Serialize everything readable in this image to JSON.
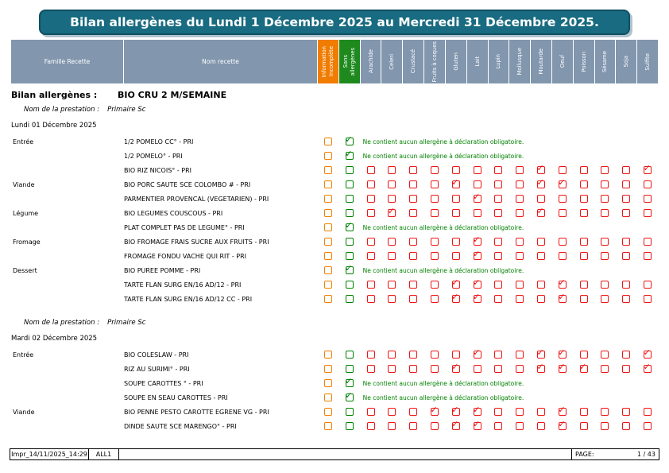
{
  "title": "Bilan allergènes du Lundi 1 Décembre 2025 au Mercredi 31 Décembre 2025.",
  "header": {
    "family": "Famille Recette",
    "recipe": "Nom recette",
    "special": [
      {
        "label": "Information Incomplète",
        "key": "info-incomplete"
      },
      {
        "label": "Sans allergènes",
        "key": "sans-allergenes"
      }
    ],
    "allergens": [
      "Arachide",
      "Celeri",
      "Crustacé",
      "Fruits à coques",
      "Gluten",
      "Lait",
      "Lupin",
      "Mollusque",
      "Moutarde",
      "Oeuf",
      "Poisson",
      "Sésame",
      "Soja",
      "Sulfite"
    ]
  },
  "bilan": {
    "label": "Bilan allergènes :",
    "value": "BIO CRU 2 M/SEMAINE"
  },
  "no_allergen_text": "Ne contient aucun allergène à déclaration obligatoire.",
  "days": [
    {
      "prestation_label": "Nom de la prestation :",
      "prestation_value": "Primaire Sc",
      "date": "Lundi 01 Décembre 2025",
      "rows": [
        {
          "family": "Entrée",
          "recipe": "1/2 POMELO CC° - PRI",
          "info_incomplete": false,
          "no_allergen": true,
          "allergens_checked": []
        },
        {
          "family": "",
          "recipe": "1/2 POMELO° - PRI",
          "info_incomplete": false,
          "no_allergen": true,
          "allergens_checked": []
        },
        {
          "family": "",
          "recipe": "BIO RIZ NICOIS° - PRI",
          "info_incomplete": false,
          "no_allergen": false,
          "allergens_checked": [
            "Moutarde",
            "Sulfite"
          ]
        },
        {
          "family": "Viande",
          "recipe": "BIO PORC SAUTE SCE COLOMBO # - PRI",
          "info_incomplete": false,
          "no_allergen": false,
          "allergens_checked": [
            "Gluten",
            "Moutarde",
            "Oeuf"
          ]
        },
        {
          "family": "",
          "recipe": "PARMENTIER PROVENCAL (VEGETARIEN) - PRI",
          "info_incomplete": false,
          "no_allergen": false,
          "allergens_checked": [
            "Lait"
          ]
        },
        {
          "family": "Légume",
          "recipe": "BIO LEGUMES COUSCOUS - PRI",
          "info_incomplete": false,
          "no_allergen": false,
          "allergens_checked": [
            "Celeri",
            "Moutarde"
          ]
        },
        {
          "family": "",
          "recipe": "PLAT COMPLET PAS DE LEGUME° - PRI",
          "info_incomplete": false,
          "no_allergen": true,
          "allergens_checked": []
        },
        {
          "family": "Fromage",
          "recipe": "BIO FROMAGE FRAIS SUCRE AUX FRUITS - PRI",
          "info_incomplete": false,
          "no_allergen": false,
          "allergens_checked": [
            "Lait"
          ]
        },
        {
          "family": "",
          "recipe": "FROMAGE FONDU VACHE QUI RIT - PRI",
          "info_incomplete": false,
          "no_allergen": false,
          "allergens_checked": [
            "Lait"
          ]
        },
        {
          "family": "Dessert",
          "recipe": "BIO PUREE POMME - PRI",
          "info_incomplete": false,
          "no_allergen": true,
          "allergens_checked": []
        },
        {
          "family": "",
          "recipe": "TARTE FLAN SURG EN/16 AD/12 - PRI",
          "info_incomplete": false,
          "no_allergen": false,
          "allergens_checked": [
            "Gluten",
            "Lait",
            "Oeuf"
          ]
        },
        {
          "family": "",
          "recipe": "TARTE FLAN SURG EN/16 AD/12 CC - PRI",
          "info_incomplete": false,
          "no_allergen": false,
          "allergens_checked": [
            "Gluten",
            "Lait",
            "Oeuf"
          ]
        }
      ]
    },
    {
      "prestation_label": "Nom de la prestation :",
      "prestation_value": "Primaire Sc",
      "date": "Mardi 02 Décembre 2025",
      "rows": [
        {
          "family": "Entrée",
          "recipe": "BIO COLESLAW - PRI",
          "info_incomplete": false,
          "no_allergen": false,
          "allergens_checked": [
            "Lait",
            "Moutarde",
            "Oeuf",
            "Sulfite"
          ]
        },
        {
          "family": "",
          "recipe": "RIZ AU SURIMI° - PRI",
          "info_incomplete": false,
          "no_allergen": false,
          "allergens_checked": [
            "Gluten",
            "Moutarde",
            "Oeuf",
            "Poisson",
            "Sulfite"
          ]
        },
        {
          "family": "",
          "recipe": "SOUPE CAROTTES ° - PRI",
          "info_incomplete": false,
          "no_allergen": true,
          "allergens_checked": []
        },
        {
          "family": "",
          "recipe": "SOUPE EN SEAU CAROTTES - PRI",
          "info_incomplete": false,
          "no_allergen": true,
          "allergens_checked": []
        },
        {
          "family": "Viande",
          "recipe": "BIO PENNE PESTO CAROTTE EGRENE VG - PRI",
          "info_incomplete": false,
          "no_allergen": false,
          "allergens_checked": [
            "Fruits à coques",
            "Gluten",
            "Lait",
            "Oeuf"
          ]
        },
        {
          "family": "",
          "recipe": "DINDE SAUTE SCE MARENGO° - PRI",
          "info_incomplete": false,
          "no_allergen": false,
          "allergens_checked": [
            "Gluten",
            "Lait",
            "Oeuf"
          ]
        }
      ]
    }
  ],
  "footer": {
    "print_stamp": "Impr_14/11/2025_14:29",
    "code": "ALL1",
    "page_label": "PAGE:",
    "page_value": "1 / 43"
  },
  "colors": {
    "title_bg": "#186B80",
    "header_bg": "#8296AE",
    "orange": "#F07C00",
    "green": "#1E8A1E",
    "checkbox_orange": "#F08000",
    "checkbox_green": "#008000",
    "checkbox_red": "#EE1515"
  }
}
